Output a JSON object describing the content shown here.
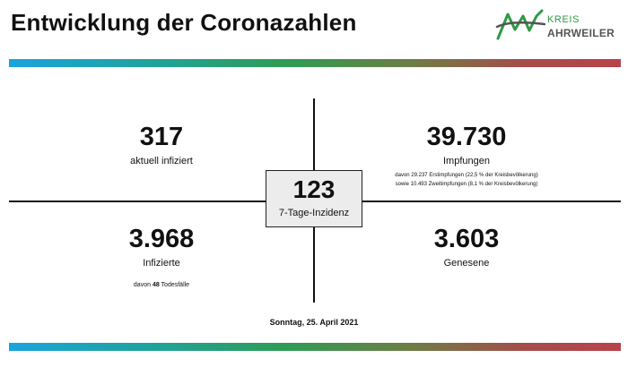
{
  "header": {
    "title": "Entwicklung der Coronazahlen"
  },
  "logo": {
    "line1": "KREIS",
    "line2": "AHRWEILER",
    "green": "#2e9a44",
    "gray": "#555555"
  },
  "colors": {
    "bar_gradient": [
      "#1aa4dc",
      "#2e9c54",
      "#b8434a"
    ],
    "center_box": "#ececec"
  },
  "center": {
    "value": "123",
    "label": "7-Tage-Inzidenz"
  },
  "top_left": {
    "value": "317",
    "label": "aktuell infiziert"
  },
  "top_right": {
    "value": "39.730",
    "label": "Impfungen",
    "note1": "davon 29.237 Erstimpfungen (22,5 % der Kreisbevölkerung)",
    "note2": "sowie 10.493 Zweitimpfungen (8,1 % der Kreisbevölkerung)"
  },
  "bottom_left": {
    "value": "3.968",
    "label": "Infizierte",
    "note_prefix": "davon ",
    "note_number": "48",
    "note_suffix": " Todesfälle"
  },
  "bottom_right": {
    "value": "3.603",
    "label": "Genesene"
  },
  "footer": {
    "date": "Sonntag, 25. April 2021"
  }
}
